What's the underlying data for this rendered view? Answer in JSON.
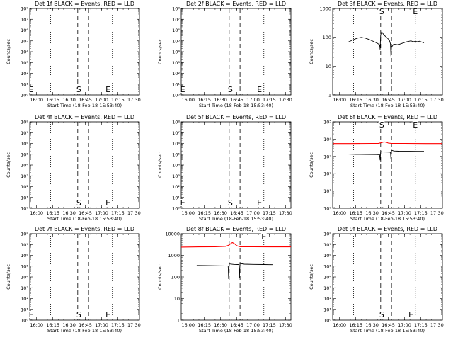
{
  "figure": {
    "background": "#ffffff",
    "events_color": "#000000",
    "lld_color": "#ff0000"
  },
  "chart_data": [
    {
      "type": "line",
      "title": "Det 1f BLACK = Events, RED = LLD",
      "xlabel": "Start Time (18-Feb-18 15:53:40)",
      "ylabel": "Counts/sec",
      "x_ticks": [
        "16:00",
        "16:15",
        "16:30",
        "16:45",
        "17:00",
        "17:15",
        "17:30"
      ],
      "xlim": [
        "15:53:40",
        "17:35:00"
      ],
      "y_scale": "log",
      "ylim": [
        1,
        100000000
      ],
      "y_ticks": [
        "10⁰",
        "10¹",
        "10²",
        "10³",
        "10⁴",
        "10⁵",
        "10⁶",
        "10⁷",
        "10⁸"
      ],
      "dashed_lines_x": [
        "16:38",
        "16:48"
      ],
      "dotted_lines_x": [
        "16:13",
        "17:10"
      ],
      "markers": [
        {
          "label": "E",
          "x": "15:55"
        },
        {
          "label": "S",
          "x": "16:39"
        },
        {
          "label": "E",
          "x": "17:06"
        }
      ],
      "series": []
    },
    {
      "type": "line",
      "title": "Det 2f BLACK = Events, RED = LLD",
      "xlabel": "Start Time (18-Feb-18 15:53:40)",
      "ylabel": "Counts/sec",
      "x_ticks": [
        "16:00",
        "16:15",
        "16:30",
        "16:45",
        "17:00",
        "17:15",
        "17:30"
      ],
      "xlim": [
        "15:53:40",
        "17:35:00"
      ],
      "y_scale": "log",
      "ylim": [
        1,
        100000000
      ],
      "y_ticks": [
        "10⁰",
        "10¹",
        "10²",
        "10³",
        "10⁴",
        "10⁵",
        "10⁶",
        "10⁷",
        "10⁸"
      ],
      "dashed_lines_x": [
        "16:38",
        "16:48"
      ],
      "dotted_lines_x": [
        "16:13",
        "17:10"
      ],
      "markers": [
        {
          "label": "E",
          "x": "15:55"
        },
        {
          "label": "S",
          "x": "16:39"
        },
        {
          "label": "E",
          "x": "17:06"
        }
      ],
      "series": []
    },
    {
      "type": "line",
      "title": "Det 3f BLACK = Events, RED = LLD",
      "xlabel": "Start Time (18-Feb-18 15:53:40)",
      "ylabel": "Counts/sec",
      "x_ticks": [
        "16:00",
        "16:15",
        "16:30",
        "16:45",
        "17:00",
        "17:15",
        "17:30"
      ],
      "xlim": [
        "15:53:40",
        "17:35:00"
      ],
      "y_scale": "log",
      "ylim": [
        1,
        1000
      ],
      "y_ticks": [
        "1",
        "10",
        "100",
        "1000"
      ],
      "dashed_lines_x": [
        "16:38",
        "16:48"
      ],
      "dotted_lines_x": [
        "16:13",
        "17:10"
      ],
      "markers": [
        {
          "label": "S",
          "x": "16:39"
        },
        {
          "label": "E",
          "x": "17:10"
        }
      ],
      "series": [
        {
          "color": "#000000",
          "points": [
            [
              "16:08",
              68
            ],
            [
              "16:12",
              80
            ],
            [
              "16:16",
              92
            ],
            [
              "16:20",
              99
            ],
            [
              "16:24",
              93
            ],
            [
              "16:28",
              82
            ],
            [
              "16:32",
              70
            ],
            [
              "16:35",
              62
            ],
            [
              "16:37",
              55
            ],
            [
              "16:37:30",
              38
            ],
            [
              "16:38",
              120
            ],
            [
              "16:38:30",
              140
            ],
            [
              "16:39",
              155
            ],
            [
              "16:41",
              120
            ],
            [
              "16:44",
              95
            ],
            [
              "16:46",
              80
            ],
            [
              "16:47",
              60
            ],
            [
              "16:47:30",
              22
            ],
            [
              "16:48",
              45
            ],
            [
              "16:50",
              58
            ],
            [
              "16:54",
              55
            ],
            [
              "16:58",
              62
            ],
            [
              "17:02",
              70
            ],
            [
              "17:06",
              75
            ],
            [
              "17:08",
              70
            ],
            [
              "17:10",
              72
            ],
            [
              "17:12",
              70
            ],
            [
              "17:14",
              73
            ],
            [
              "17:16",
              68
            ],
            [
              "17:18",
              64
            ]
          ]
        }
      ]
    },
    {
      "type": "line",
      "title": "Det 4f BLACK = Events, RED = LLD",
      "xlabel": "Start Time (18-Feb-18 15:53:40)",
      "ylabel": "Counts/sec",
      "x_ticks": [
        "16:00",
        "16:15",
        "16:30",
        "16:45",
        "17:00",
        "17:15",
        "17:30"
      ],
      "xlim": [
        "15:53:40",
        "17:35:00"
      ],
      "y_scale": "log",
      "ylim": [
        1,
        100000000
      ],
      "y_ticks": [
        "10⁰",
        "10¹",
        "10²",
        "10³",
        "10⁴",
        "10⁵",
        "10⁶",
        "10⁷",
        "10⁸"
      ],
      "dashed_lines_x": [
        "16:38",
        "16:48"
      ],
      "dotted_lines_x": [
        "16:13",
        "17:10"
      ],
      "markers": [
        {
          "label": "S",
          "x": "16:39"
        },
        {
          "label": "E",
          "x": "17:06"
        }
      ],
      "series": []
    },
    {
      "type": "line",
      "title": "Det 5f BLACK = Events, RED = LLD",
      "xlabel": "Start Time (18-Feb-18 15:53:40)",
      "ylabel": "Counts/sec",
      "x_ticks": [
        "16:00",
        "16:15",
        "16:30",
        "16:45",
        "17:00",
        "17:15",
        "17:30"
      ],
      "xlim": [
        "15:53:40",
        "17:35:00"
      ],
      "y_scale": "log",
      "ylim": [
        1,
        100000000
      ],
      "y_ticks": [
        "10⁰",
        "10¹",
        "10²",
        "10³",
        "10⁴",
        "10⁵",
        "10⁶",
        "10⁷",
        "10⁸"
      ],
      "dashed_lines_x": [
        "16:38",
        "16:48"
      ],
      "dotted_lines_x": [
        "16:13",
        "17:10"
      ],
      "markers": [
        {
          "label": "E",
          "x": "15:55"
        },
        {
          "label": "S",
          "x": "16:39"
        },
        {
          "label": "E",
          "x": "17:06"
        }
      ],
      "series": []
    },
    {
      "type": "line",
      "title": "Det 6f BLACK = Events, RED = LLD",
      "xlabel": "Start Time (18-Feb-18 15:53:40)",
      "ylabel": "Counts/sec",
      "x_ticks": [
        "16:00",
        "16:15",
        "16:30",
        "16:45",
        "17:00",
        "17:15",
        "17:30"
      ],
      "xlim": [
        "15:53:40",
        "17:35:00"
      ],
      "y_scale": "log",
      "ylim": [
        1,
        100000
      ],
      "y_ticks": [
        "10⁰",
        "10¹",
        "10²",
        "10³",
        "10⁴",
        "10⁵"
      ],
      "dashed_lines_x": [
        "16:38",
        "16:48"
      ],
      "dotted_lines_x": [
        "16:13",
        "17:10"
      ],
      "markers": [
        {
          "label": "S",
          "x": "16:39"
        },
        {
          "label": "E",
          "x": "17:10"
        }
      ],
      "series": [
        {
          "color": "#ff0000",
          "points": [
            [
              "15:53:40",
              5500
            ],
            [
              "16:10",
              5500
            ],
            [
              "16:30",
              5600
            ],
            [
              "16:36",
              5700
            ],
            [
              "16:39",
              6300
            ],
            [
              "16:41",
              6900
            ],
            [
              "16:43",
              6600
            ],
            [
              "16:45",
              5900
            ],
            [
              "16:48",
              5600
            ],
            [
              "17:00",
              5600
            ],
            [
              "17:20",
              5500
            ],
            [
              "17:35",
              5500
            ]
          ]
        },
        {
          "color": "#000000",
          "points": [
            [
              "16:08",
              1350
            ],
            [
              "16:15",
              1320
            ],
            [
              "16:25",
              1300
            ],
            [
              "16:34",
              1280
            ],
            [
              "16:37",
              1250
            ],
            [
              "16:37:30",
              600
            ],
            [
              "16:38",
              1900
            ],
            [
              "16:40",
              1800
            ],
            [
              "16:44",
              1780
            ],
            [
              "16:47",
              1750
            ],
            [
              "16:47:30",
              700
            ],
            [
              "16:48",
              2300
            ],
            [
              "16:50",
              2050
            ],
            [
              "16:55",
              2000
            ],
            [
              "17:05",
              1980
            ],
            [
              "17:12",
              1960
            ],
            [
              "17:18",
              1950
            ]
          ]
        }
      ]
    },
    {
      "type": "line",
      "title": "Det 7f BLACK = Events, RED = LLD",
      "xlabel": "Start Time (18-Feb-18 15:53:40)",
      "ylabel": "Counts/sec",
      "x_ticks": [
        "16:00",
        "16:15",
        "16:30",
        "16:45",
        "17:00",
        "17:15",
        "17:30"
      ],
      "xlim": [
        "15:53:40",
        "17:35:00"
      ],
      "y_scale": "log",
      "ylim": [
        1,
        100000000
      ],
      "y_ticks": [
        "10⁰",
        "10¹",
        "10²",
        "10³",
        "10⁴",
        "10⁵",
        "10⁶",
        "10⁷",
        "10⁸"
      ],
      "dashed_lines_x": [
        "16:38",
        "16:48"
      ],
      "dotted_lines_x": [
        "16:13",
        "17:10"
      ],
      "markers": [
        {
          "label": "E",
          "x": "15:55"
        },
        {
          "label": "S",
          "x": "16:39"
        },
        {
          "label": "E",
          "x": "17:06"
        }
      ],
      "series": []
    },
    {
      "type": "line",
      "title": "Det 8f BLACK = Events, RED = LLD",
      "xlabel": "Start Time (18-Feb-18 15:53:40)",
      "ylabel": "Counts/sec",
      "x_ticks": [
        "16:00",
        "16:15",
        "16:30",
        "16:45",
        "17:00",
        "17:15",
        "17:30"
      ],
      "xlim": [
        "15:53:40",
        "17:35:00"
      ],
      "y_scale": "log",
      "ylim": [
        1,
        10000
      ],
      "y_ticks": [
        "1",
        "10",
        "100",
        "1000",
        "10000"
      ],
      "dashed_lines_x": [
        "16:38",
        "16:48"
      ],
      "dotted_lines_x": [
        "16:13",
        "17:10"
      ],
      "markers": [
        {
          "label": "E",
          "x": "17:10"
        }
      ],
      "series": [
        {
          "color": "#ff0000",
          "points": [
            [
              "15:53:40",
              2400
            ],
            [
              "16:10",
              2450
            ],
            [
              "16:25",
              2500
            ],
            [
              "16:35",
              2600
            ],
            [
              "16:38",
              3000
            ],
            [
              "16:40",
              3700
            ],
            [
              "16:41",
              3900
            ],
            [
              "16:43",
              3400
            ],
            [
              "16:45",
              2800
            ],
            [
              "16:48",
              2500
            ],
            [
              "17:00",
              2500
            ],
            [
              "17:20",
              2450
            ],
            [
              "17:35",
              2450
            ]
          ]
        },
        {
          "color": "#000000",
          "points": [
            [
              "16:08",
              340
            ],
            [
              "16:15",
              335
            ],
            [
              "16:25",
              330
            ],
            [
              "16:34",
              325
            ],
            [
              "16:37",
              320
            ],
            [
              "16:37:30",
              80
            ],
            [
              "16:38",
              400
            ],
            [
              "16:42",
              380
            ],
            [
              "16:46",
              375
            ],
            [
              "16:47",
              370
            ],
            [
              "16:47:30",
              90
            ],
            [
              "16:48",
              420
            ],
            [
              "16:52",
              390
            ],
            [
              "17:00",
              380
            ],
            [
              "17:10",
              375
            ],
            [
              "17:18",
              370
            ]
          ]
        }
      ]
    },
    {
      "type": "line",
      "title": "Det 9f BLACK = Events, RED = LLD",
      "xlabel": "Start Time (18-Feb-18 15:53:40)",
      "ylabel": "Counts/sec",
      "x_ticks": [
        "16:00",
        "16:15",
        "16:30",
        "16:45",
        "17:00",
        "17:15",
        "17:30"
      ],
      "xlim": [
        "15:53:40",
        "17:35:00"
      ],
      "y_scale": "log",
      "ylim": [
        1,
        100000000
      ],
      "y_ticks": [
        "10⁰",
        "10¹",
        "10²",
        "10³",
        "10⁴",
        "10⁵",
        "10⁶",
        "10⁷",
        "10⁸"
      ],
      "dashed_lines_x": [
        "16:38",
        "16:48"
      ],
      "dotted_lines_x": [
        "16:13",
        "17:10"
      ],
      "markers": [
        {
          "label": "S",
          "x": "16:39"
        },
        {
          "label": "E",
          "x": "17:06"
        }
      ],
      "series": []
    }
  ]
}
